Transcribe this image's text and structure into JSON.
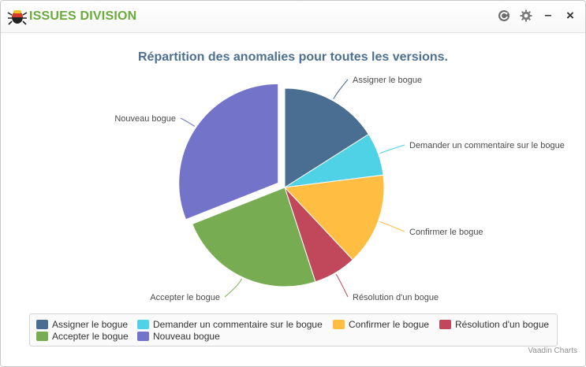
{
  "window": {
    "title": "ISSUES DIVISION"
  },
  "toolbar": {
    "refresh_icon": "refresh-icon",
    "settings_icon": "gear-icon",
    "minimize_label": "–",
    "close_label": "×"
  },
  "chart_data": {
    "type": "pie",
    "title": "Répartition des anomalies pour toutes les versions.",
    "series": [
      {
        "name": "",
        "points": [
          {
            "name": "Assigner le bogue",
            "value": 16,
            "color": "#4a6d92"
          },
          {
            "name": "Demander un commentaire sur le bogue",
            "value": 7,
            "color": "#4fd1e6"
          },
          {
            "name": "Confirmer le bogue",
            "value": 15,
            "color": "#ffbe42"
          },
          {
            "name": "Résolution d'un bogue",
            "value": 7,
            "color": "#c1485a"
          },
          {
            "name": "Accepter le bogue",
            "value": 24,
            "color": "#78ac52"
          },
          {
            "name": "Nouveau bogue",
            "value": 31,
            "color": "#7373c9",
            "sliced": true
          }
        ]
      }
    ],
    "legend_placement": "bottom"
  },
  "credits": "Vaadin Charts"
}
